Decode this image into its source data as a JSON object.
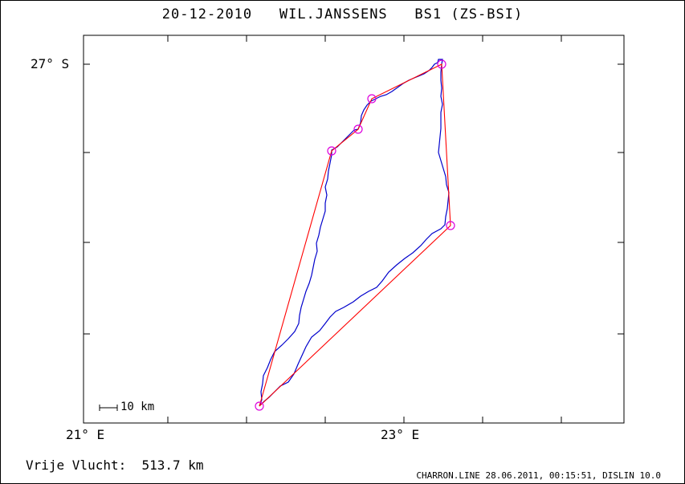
{
  "title": "20-12-2010   WIL.JANSSENS   BS1 (ZS-BSI)",
  "axes": {
    "lat_label": "27° S",
    "lon_labels": [
      "21° E",
      "23° E"
    ]
  },
  "scale_bar": {
    "label": "10 km"
  },
  "distance": "Vrije Vlucht:  513.7 km",
  "footer": "CHARRON.LINE 28.06.2011, 00:15:51, DISLIN 10.0",
  "colors": {
    "track": "#0000cc",
    "task": "#ff0000",
    "turnpoint": "#dd00dd",
    "frame": "#000000"
  }
}
